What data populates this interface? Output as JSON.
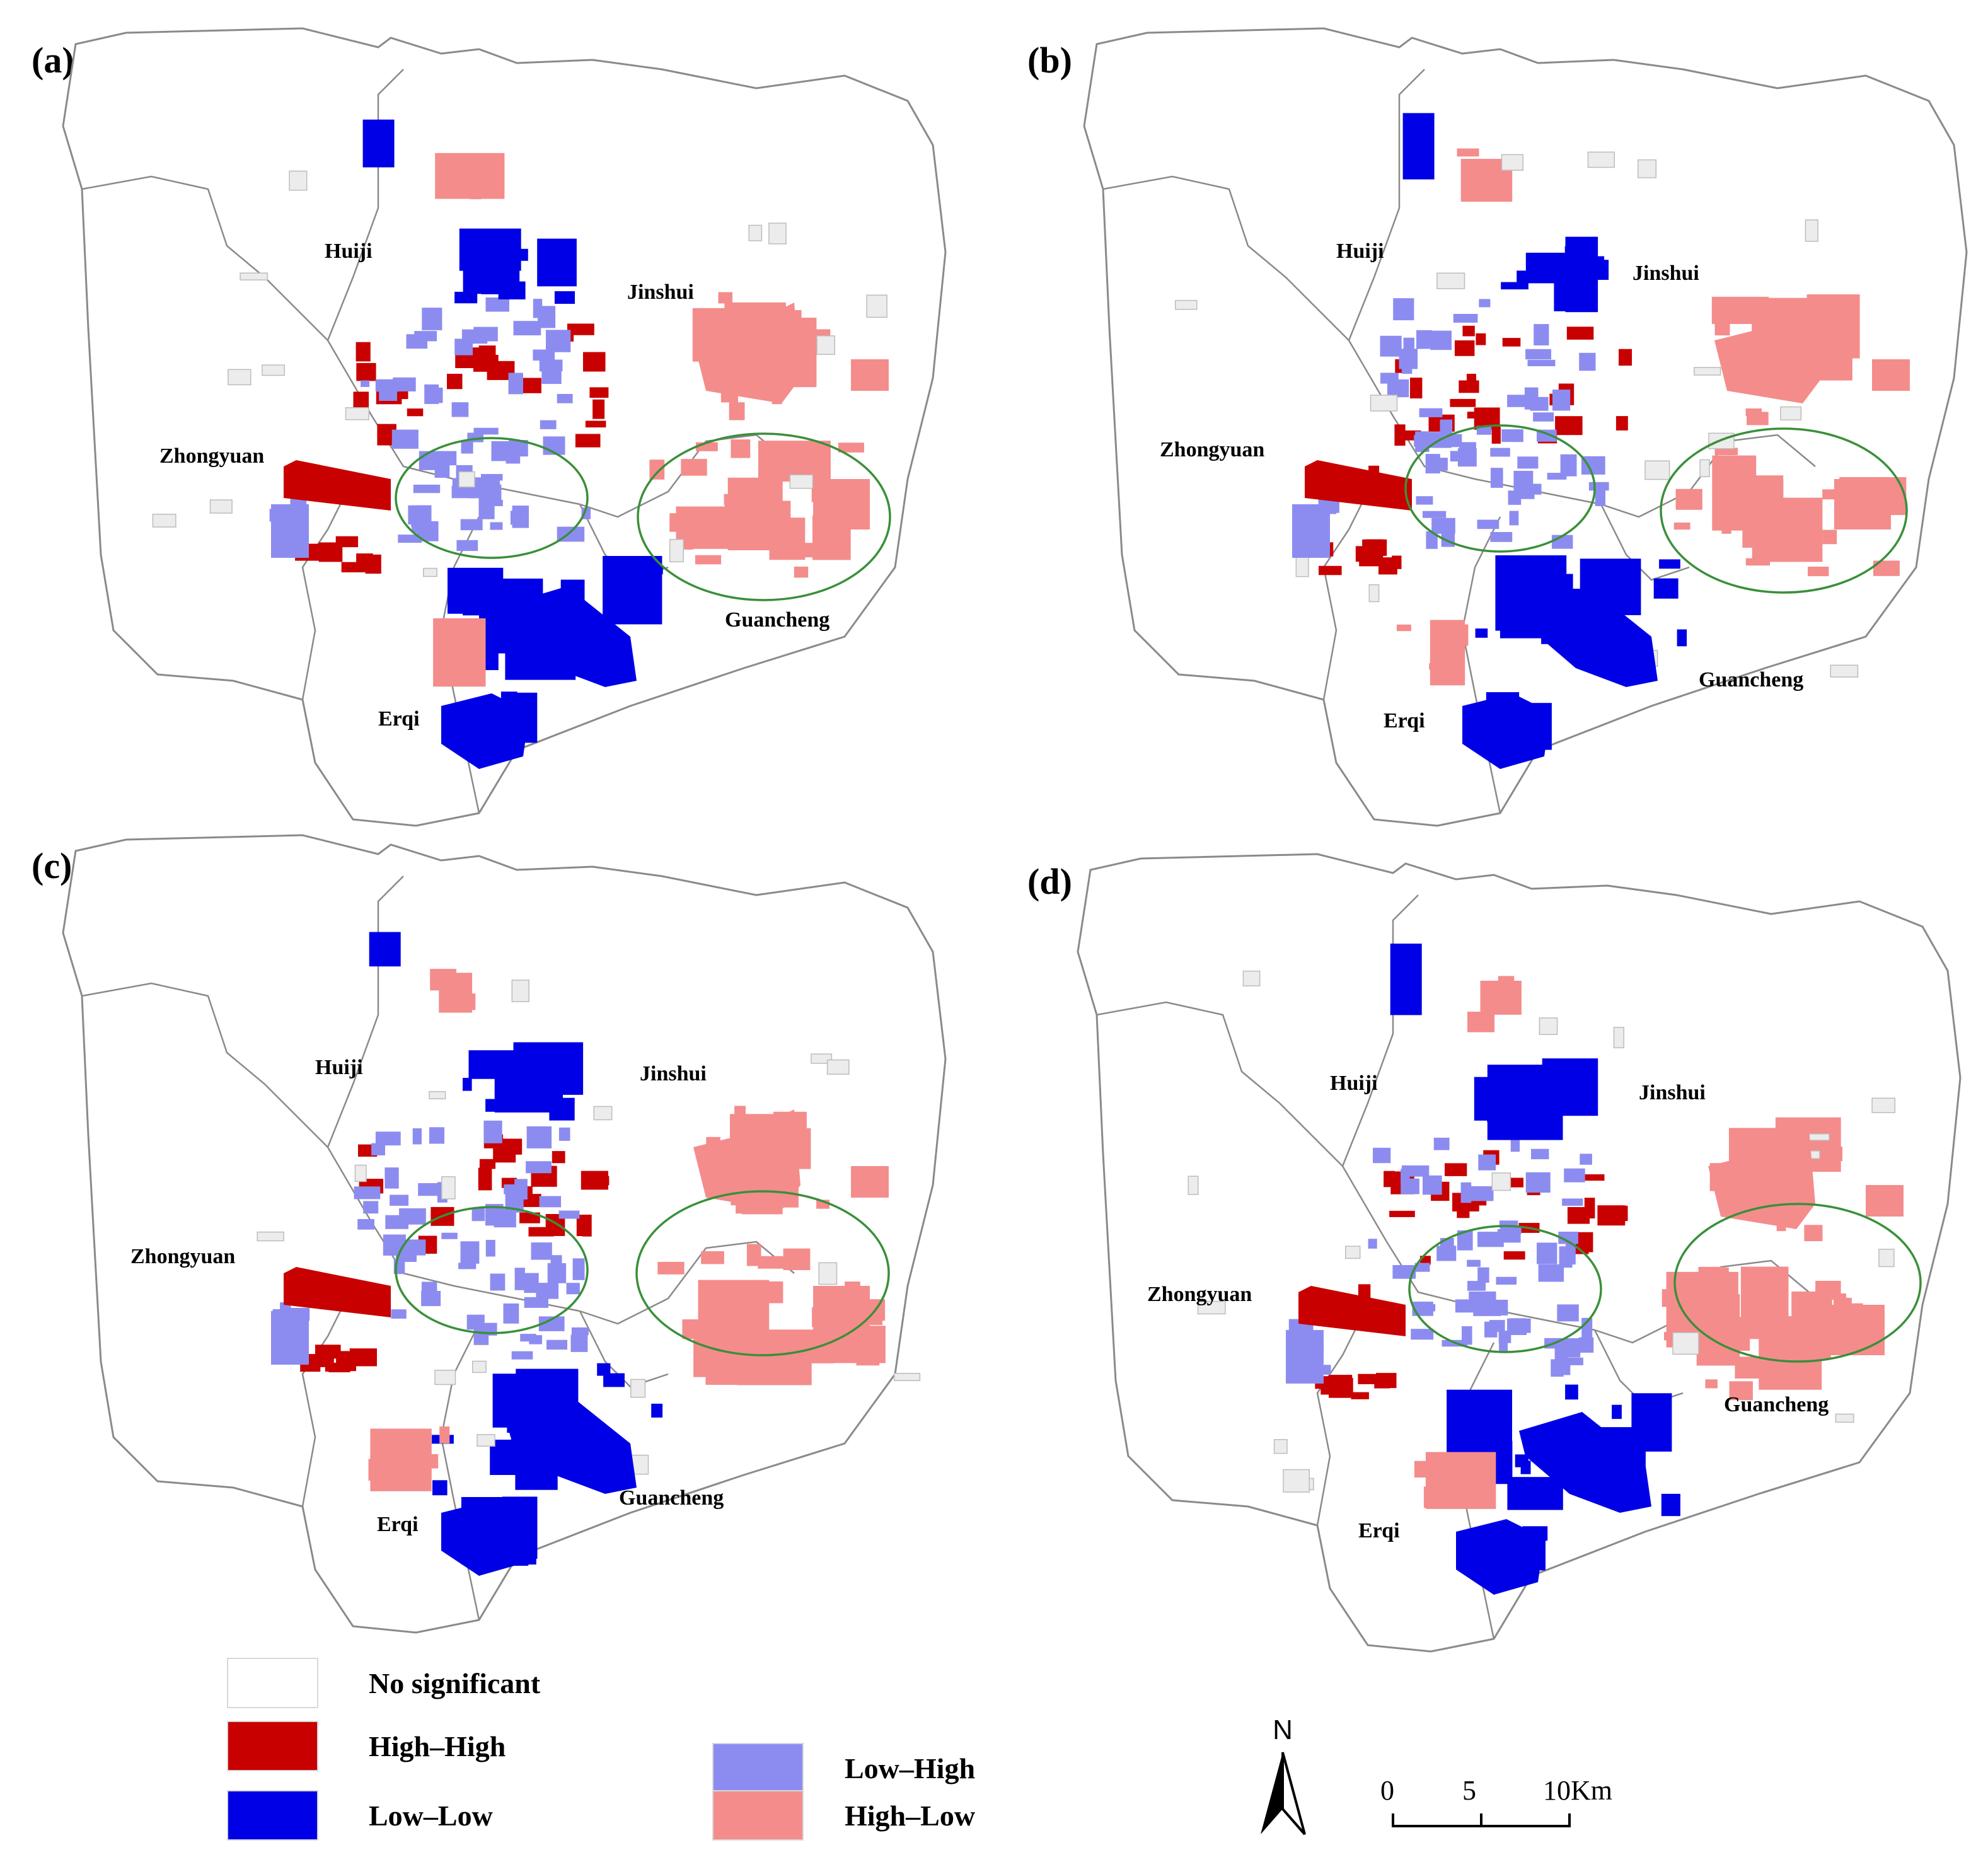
{
  "panels": [
    {
      "label": "(a)",
      "districts": {
        "huiji": "Huiji",
        "jinshui": "Jinshui",
        "zhongyuan": "Zhongyuan",
        "guancheng": "Guancheng",
        "erqi": "Erqi"
      }
    },
    {
      "label": "(b)",
      "districts": {
        "huiji": "Huiji",
        "jinshui": "Jinshui",
        "zhongyuan": "Zhongyuan",
        "guancheng": "Guancheng",
        "erqi": "Erqi"
      }
    },
    {
      "label": "(c)",
      "districts": {
        "huiji": "Huiji",
        "jinshui": "Jinshui",
        "zhongyuan": "Zhongyuan",
        "guancheng": "Guancheng",
        "erqi": "Erqi"
      }
    },
    {
      "label": "(d)",
      "districts": {
        "huiji": "Huiji",
        "jinshui": "Jinshui",
        "zhongyuan": "Zhongyuan",
        "guancheng": "Guancheng",
        "erqi": "Erqi"
      }
    }
  ],
  "legend": {
    "no_significant": {
      "label": "No significant",
      "color": "#ffffff"
    },
    "high_high": {
      "label": "High–High",
      "color": "#c80000"
    },
    "low_low": {
      "label": "Low–Low",
      "color": "#0000e6"
    },
    "low_high": {
      "label": "Low–High",
      "color": "#8c8cf0"
    },
    "high_low": {
      "label": "High–Low",
      "color": "#f48c8c"
    }
  },
  "colors": {
    "boundary": "#8a8a8a",
    "not_significant_fill": "#ececec",
    "hotspot_ellipse": "#3a8f3a"
  },
  "north_arrow": {
    "label": "N",
    "icon": "north-arrow-icon"
  },
  "scale_bar": {
    "ticks": [
      "0",
      "5",
      "10Km"
    ]
  }
}
